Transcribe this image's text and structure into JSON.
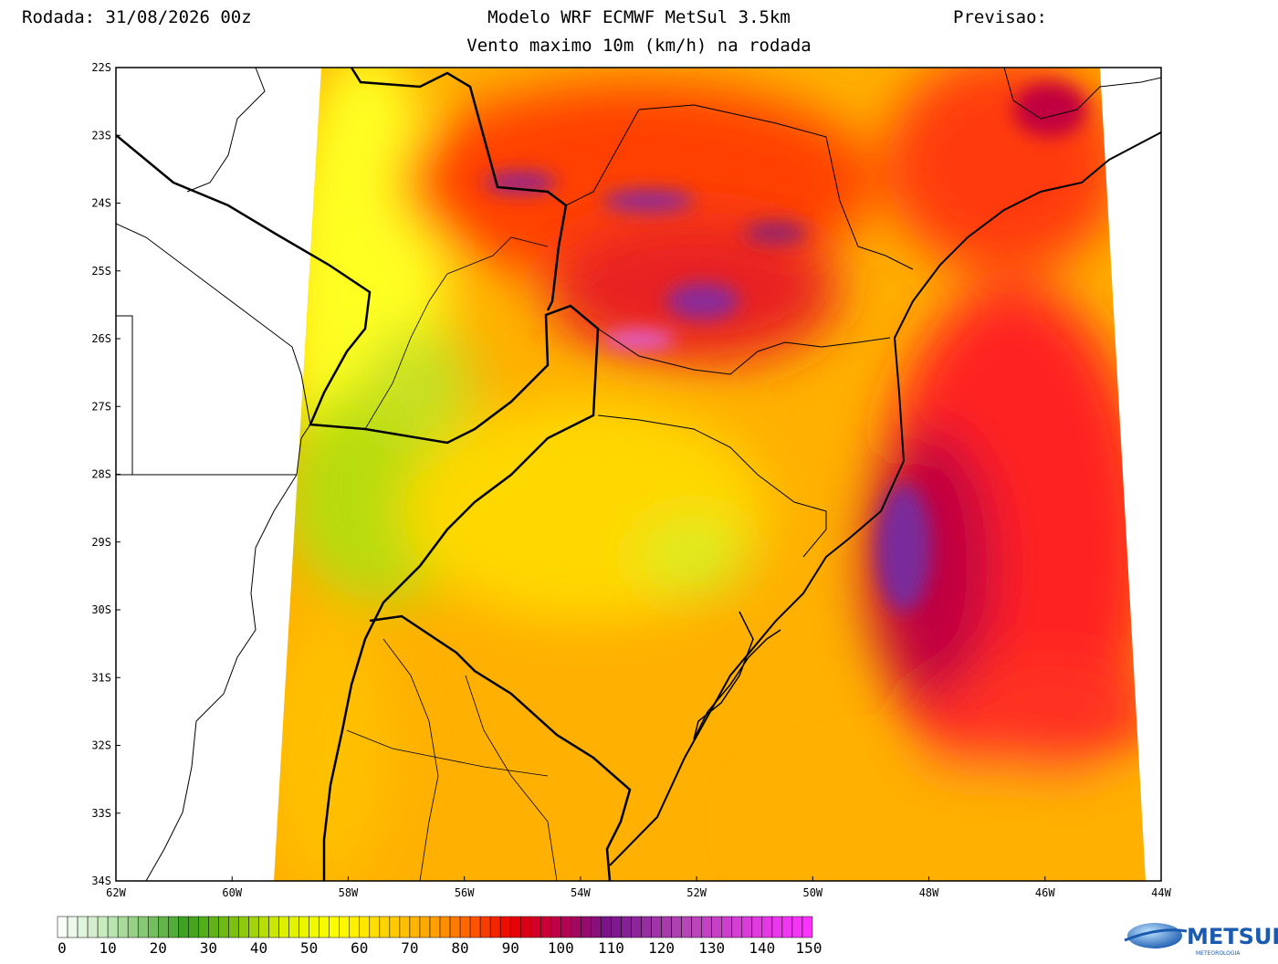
{
  "header": {
    "run": "Rodada: 31/08/2026 00z",
    "title": "Modelo WRF ECMWF MetSul 3.5km",
    "forecast": "Previsao:",
    "subtitle": "Vento maximo 10m (km/h) na rodada"
  },
  "map": {
    "lat_ticks": [
      "22S",
      "23S",
      "24S",
      "25S",
      "26S",
      "27S",
      "28S",
      "29S",
      "30S",
      "31S",
      "32S",
      "33S",
      "34S"
    ],
    "lon_ticks": [
      "62W",
      "60W",
      "58W",
      "56W",
      "54W",
      "52W",
      "50W",
      "48W",
      "46W",
      "44W"
    ]
  },
  "colorbar": {
    "labels": [
      0,
      10,
      20,
      30,
      40,
      50,
      60,
      70,
      80,
      90,
      100,
      110,
      120,
      130,
      140,
      150
    ]
  },
  "logo": {
    "name": "METSUL",
    "tagline": "METEOROLOGIA"
  }
}
